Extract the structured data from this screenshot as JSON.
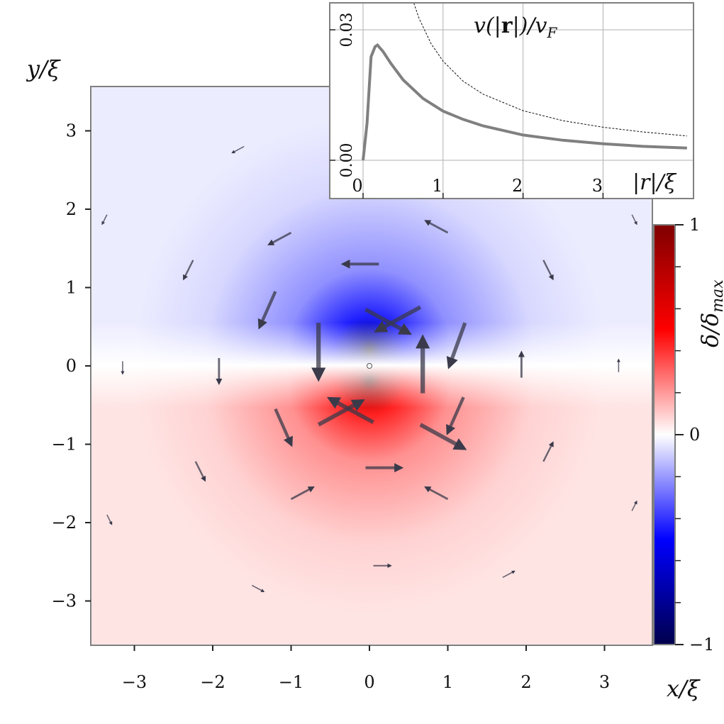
{
  "chart_data": [
    {
      "type": "heatmap",
      "description_colorscale": "seismic",
      "xlabel": "x/ξ",
      "ylabel": "y/ξ",
      "xlim": [
        -3.6,
        3.6
      ],
      "ylim": [
        -3.6,
        3.6
      ],
      "x_ticks": [
        -3,
        -2,
        -1,
        0,
        1,
        2,
        3
      ],
      "y_ticks": [
        -3,
        -2,
        -1,
        0,
        1,
        2,
        3
      ],
      "x_tick_labels": [
        "−3",
        "−2",
        "−1",
        "0",
        "1",
        "2",
        "3"
      ],
      "y_tick_labels": [
        "−3",
        "−2",
        "−1",
        "0",
        "1",
        "2",
        "3"
      ],
      "colorbar": {
        "label": "δ/δ_max",
        "label_main": "δ/δ",
        "label_sub": "max",
        "range": [
          -1,
          1
        ],
        "tick_values": [
          1,
          0,
          -1
        ],
        "tick_labels": [
          "1",
          "0",
          "−1"
        ]
      },
      "arrows": [
        {
          "x": 0.12,
          "y": 1.3,
          "u": -0.45,
          "v": 0.0
        },
        {
          "x": 0.65,
          "y": 0.75,
          "u": -0.55,
          "v": -0.3
        },
        {
          "x": 1.22,
          "y": 0.55,
          "u": -0.2,
          "v": -0.55
        },
        {
          "x": 0.65,
          "y": -0.75,
          "u": 0.55,
          "v": -0.3
        },
        {
          "x": 0.05,
          "y": -0.72,
          "u": -0.55,
          "v": 0.3
        },
        {
          "x": -0.65,
          "y": -0.75,
          "u": 0.55,
          "v": 0.3
        },
        {
          "x": -0.05,
          "y": 0.72,
          "u": 0.55,
          "v": -0.3
        },
        {
          "x": -0.65,
          "y": 0.55,
          "u": 0.0,
          "v": -0.7
        },
        {
          "x": 0.68,
          "y": -0.35,
          "u": 0.0,
          "v": 0.7
        },
        {
          "x": -0.05,
          "y": -1.3,
          "u": 0.45,
          "v": 0.0
        },
        {
          "x": 1.0,
          "y": 1.7,
          "u": -0.28,
          "v": 0.15
        },
        {
          "x": -1.0,
          "y": 1.7,
          "u": -0.28,
          "v": -0.15
        },
        {
          "x": 1.0,
          "y": -1.7,
          "u": -0.28,
          "v": 0.15
        },
        {
          "x": -1.0,
          "y": -1.7,
          "u": 0.28,
          "v": 0.15
        },
        {
          "x": -1.2,
          "y": 0.95,
          "u": -0.2,
          "v": -0.45
        },
        {
          "x": -1.2,
          "y": -0.55,
          "u": 0.2,
          "v": -0.45
        },
        {
          "x": 1.2,
          "y": -0.4,
          "u": -0.2,
          "v": -0.45
        },
        {
          "x": -1.92,
          "y": 0.1,
          "u": 0.0,
          "v": -0.32
        },
        {
          "x": 1.94,
          "y": -0.15,
          "u": 0.0,
          "v": 0.32
        },
        {
          "x": -3.15,
          "y": 0.06,
          "u": 0.0,
          "v": -0.16
        },
        {
          "x": 3.18,
          "y": -0.08,
          "u": 0.0,
          "v": 0.16
        },
        {
          "x": -2.25,
          "y": 1.35,
          "u": -0.12,
          "v": -0.24
        },
        {
          "x": 2.22,
          "y": 1.35,
          "u": 0.12,
          "v": -0.24
        },
        {
          "x": -2.22,
          "y": -1.22,
          "u": 0.12,
          "v": -0.24
        },
        {
          "x": 2.22,
          "y": -1.22,
          "u": 0.12,
          "v": 0.24
        },
        {
          "x": -1.6,
          "y": 2.8,
          "u": -0.15,
          "v": -0.08
        },
        {
          "x": 1.7,
          "y": -2.7,
          "u": 0.15,
          "v": 0.08
        },
        {
          "x": -1.5,
          "y": -2.8,
          "u": 0.15,
          "v": -0.08
        },
        {
          "x": 0.05,
          "y": -2.55,
          "u": 0.22,
          "v": 0.0
        },
        {
          "x": -3.35,
          "y": 1.93,
          "u": -0.06,
          "v": -0.12
        },
        {
          "x": 3.35,
          "y": 1.93,
          "u": 0.06,
          "v": -0.12
        },
        {
          "x": -3.35,
          "y": -1.9,
          "u": 0.06,
          "v": -0.12
        },
        {
          "x": 3.35,
          "y": -1.85,
          "u": 0.06,
          "v": 0.12
        }
      ]
    },
    {
      "type": "line",
      "inset": true,
      "title": "v(|r|)/v_F",
      "title_parts": [
        "v(|",
        "r",
        "|)/v",
        "F"
      ],
      "xlabel": "|r|/ξ",
      "xlim": [
        -0.08,
        4.05
      ],
      "ylim": [
        -0.002,
        0.044
      ],
      "x_ticks": [
        0,
        1,
        2,
        3
      ],
      "x_tick_labels": [
        "0",
        "1",
        "2",
        "3"
      ],
      "y_ticks": [
        0.0,
        0.03
      ],
      "y_tick_labels": [
        "0.00",
        "0.03"
      ],
      "grid": true,
      "series": [
        {
          "style": "solid",
          "x": [
            0.0,
            0.05,
            0.1,
            0.15,
            0.18,
            0.25,
            0.35,
            0.5,
            0.75,
            1.0,
            1.25,
            1.5,
            2.0,
            2.5,
            3.0,
            3.5,
            4.05
          ],
          "y": [
            0.0,
            0.0085,
            0.0238,
            0.0261,
            0.0265,
            0.025,
            0.0222,
            0.0185,
            0.0142,
            0.0113,
            0.0094,
            0.0079,
            0.0058,
            0.0046,
            0.0038,
            0.0032,
            0.0028
          ]
        },
        {
          "style": "dashed",
          "x": [
            0.52,
            0.6,
            0.7,
            0.85,
            1.0,
            1.25,
            1.5,
            2.0,
            2.5,
            3.0,
            3.5,
            4.05
          ],
          "y": [
            0.044,
            0.038,
            0.0326,
            0.0268,
            0.0228,
            0.0182,
            0.0152,
            0.0114,
            0.0091,
            0.0076,
            0.0065,
            0.0056
          ]
        }
      ]
    }
  ]
}
